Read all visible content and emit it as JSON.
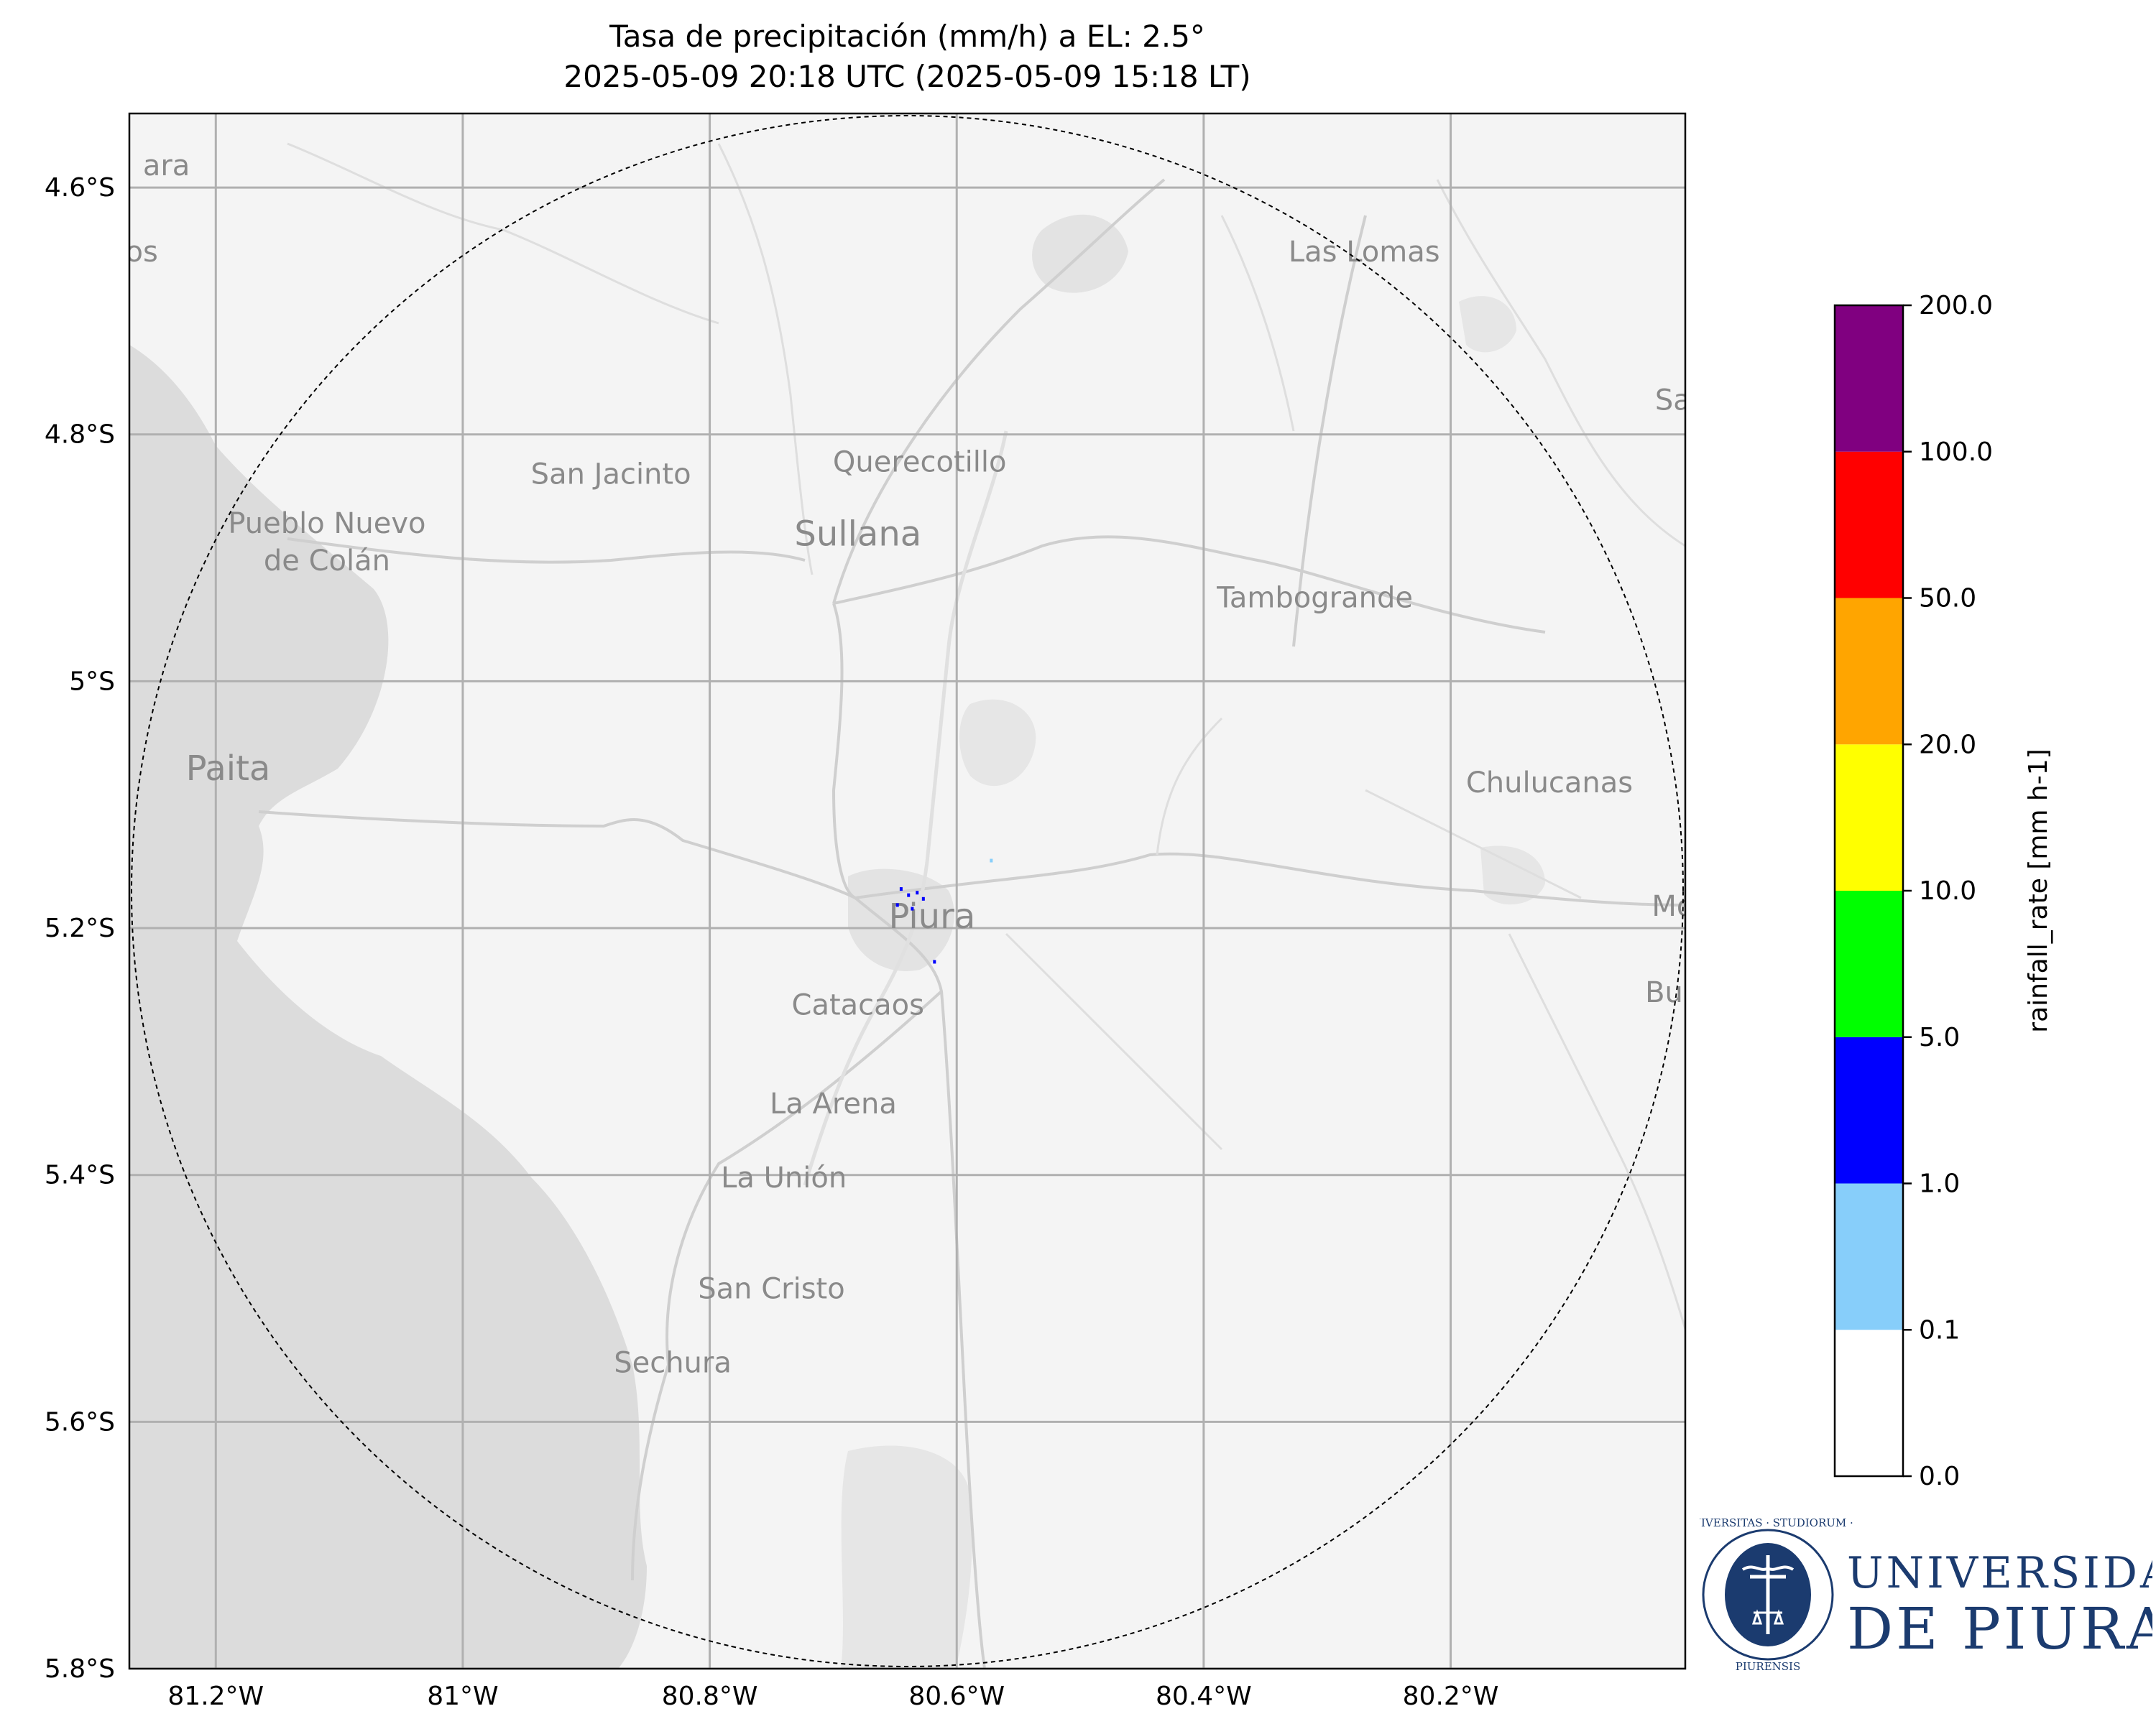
{
  "title": {
    "line1": "Tasa de precipitación (mm/h) a EL: 2.5°",
    "line2": "2025-05-09 20:18 UTC (2025-05-09 15:18 LT)"
  },
  "map": {
    "lon_range": [
      -81.27,
      -80.01
    ],
    "lat_range": [
      -5.8,
      -4.54
    ],
    "x_ticks": [
      {
        "value": -81.2,
        "label": "81.2°W"
      },
      {
        "value": -81.0,
        "label": "81°W"
      },
      {
        "value": -80.8,
        "label": "80.8°W"
      },
      {
        "value": -80.6,
        "label": "80.6°W"
      },
      {
        "value": -80.4,
        "label": "80.4°W"
      },
      {
        "value": -80.2,
        "label": "80.2°W"
      }
    ],
    "y_ticks": [
      {
        "value": -4.6,
        "label": "4.6°S"
      },
      {
        "value": -4.8,
        "label": "4.8°S"
      },
      {
        "value": -5.0,
        "label": "5°S"
      },
      {
        "value": -5.2,
        "label": "5.2°S"
      },
      {
        "value": -5.4,
        "label": "5.4°S"
      },
      {
        "value": -5.6,
        "label": "5.6°S"
      },
      {
        "value": -5.8,
        "label": "5.8°S"
      }
    ],
    "radar_center": {
      "lon": -80.63,
      "lat": -5.17
    },
    "places": [
      {
        "name": "Las Lomas",
        "lon": -80.27,
        "lat": -4.66
      },
      {
        "name": "San Jacinto",
        "lon": -80.88,
        "lat": -4.84
      },
      {
        "name": "Querecotillo",
        "lon": -80.63,
        "lat": -4.83
      },
      {
        "name": "Sullana",
        "lon": -80.68,
        "lat": -4.89,
        "big": true
      },
      {
        "name": "Pueblo Nuevo",
        "lon": -81.11,
        "lat": -4.88
      },
      {
        "name": "de Colán",
        "lon": -81.11,
        "lat": -4.91
      },
      {
        "name": "Tambogrande",
        "lon": -80.31,
        "lat": -4.94
      },
      {
        "name": "Paita",
        "lon": -81.19,
        "lat": -5.08,
        "big": true
      },
      {
        "name": "Chulucanas",
        "lon": -80.12,
        "lat": -5.09
      },
      {
        "name": "Piura",
        "lon": -80.62,
        "lat": -5.2,
        "big": true
      },
      {
        "name": "Catacaos",
        "lon": -80.68,
        "lat": -5.27
      },
      {
        "name": "La Arena",
        "lon": -80.7,
        "lat": -5.35
      },
      {
        "name": "La Unión",
        "lon": -80.74,
        "lat": -5.41
      },
      {
        "name": "San Cristo",
        "lon": -80.75,
        "lat": -5.5
      },
      {
        "name": "Sechura",
        "lon": -80.83,
        "lat": -5.56
      },
      {
        "name": "ara",
        "lon": -81.24,
        "lat": -4.59
      },
      {
        "name": "os",
        "lon": -81.26,
        "lat": -4.66
      },
      {
        "name": "Sa",
        "lon": -80.02,
        "lat": -4.78
      },
      {
        "name": "Mo",
        "lon": -80.02,
        "lat": -5.19
      },
      {
        "name": "Bue",
        "lon": -80.02,
        "lat": -5.26
      }
    ],
    "rain_pixels": [
      {
        "lon": -80.645,
        "lat": -5.168,
        "rate": 3
      },
      {
        "lon": -80.639,
        "lat": -5.173,
        "rate": 2
      },
      {
        "lon": -80.632,
        "lat": -5.171,
        "rate": 4
      },
      {
        "lon": -80.627,
        "lat": -5.176,
        "rate": 2
      },
      {
        "lon": -80.648,
        "lat": -5.181,
        "rate": 3
      },
      {
        "lon": -80.636,
        "lat": -5.184,
        "rate": 2
      },
      {
        "lon": -80.618,
        "lat": -5.227,
        "rate": 3
      },
      {
        "lon": -80.572,
        "lat": -5.145,
        "rate": 0.5
      }
    ]
  },
  "colorbar": {
    "label": "rainfall_rate [mm h-1]",
    "bounds": [
      "0.0",
      "0.1",
      "1.0",
      "5.0",
      "10.0",
      "20.0",
      "50.0",
      "100.0",
      "200.0"
    ],
    "colors": [
      "#ffffff",
      "#87cefa",
      "#0000ff",
      "#00ff00",
      "#ffff00",
      "#ffa500",
      "#ff0000",
      "#800080"
    ]
  },
  "logo": {
    "line1": "UNIVERSIDAD",
    "line2": "DE  PIURA",
    "seal_top": "UNIVERSITAS · STUDIORUM ·",
    "seal_bottom": "PIURENSIS"
  }
}
